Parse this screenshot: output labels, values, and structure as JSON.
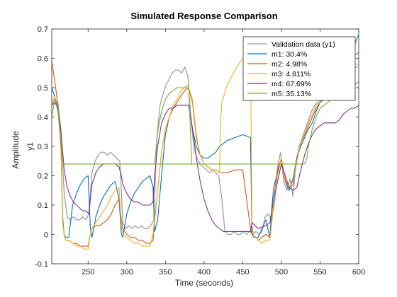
{
  "chart_data": {
    "type": "line",
    "title": "Simulated Response Comparison",
    "xlabel": "Time (seconds)",
    "ylabel": "Amplitude",
    "output_label": "y1",
    "xlim": [
      203,
      600
    ],
    "ylim": [
      -0.1,
      0.7
    ],
    "xticks": [
      250,
      300,
      350,
      400,
      450,
      500,
      550,
      600
    ],
    "yticks": [
      -0.1,
      0,
      0.1,
      0.2,
      0.3,
      0.4,
      0.5,
      0.6,
      0.7
    ],
    "legend_position": "top-right",
    "series": [
      {
        "name": "Validation data (y1)",
        "color": "#a0a0a0",
        "x": [
          203,
          207,
          211,
          215,
          219,
          223,
          227,
          231,
          235,
          239,
          243,
          247,
          251,
          255,
          259,
          263,
          267,
          271,
          275,
          279,
          283,
          287,
          291,
          295,
          299,
          303,
          307,
          311,
          315,
          319,
          323,
          327,
          331,
          335,
          339,
          343,
          347,
          351,
          355,
          359,
          363,
          367,
          371,
          375,
          379,
          383,
          387,
          391,
          395,
          399,
          403,
          407,
          411,
          415,
          419,
          423,
          427,
          431,
          435,
          439,
          443,
          447,
          451,
          455,
          459,
          463,
          467,
          471,
          475,
          479,
          483,
          487,
          491,
          495,
          499,
          503,
          507,
          511,
          515,
          519,
          523,
          527,
          531,
          535,
          539,
          543,
          547,
          551,
          555,
          559,
          563,
          567,
          571,
          575,
          579,
          583,
          587,
          591,
          595,
          599
        ],
        "y": [
          0.44,
          0.46,
          0.45,
          0.35,
          0.14,
          0.06,
          0.05,
          0.06,
          0.05,
          0.05,
          0.06,
          0.05,
          0.07,
          0.21,
          0.25,
          0.27,
          0.28,
          0.28,
          0.27,
          0.28,
          0.27,
          0.26,
          0.25,
          0.04,
          0.02,
          0.03,
          0.02,
          0.03,
          0.02,
          0.03,
          0.02,
          0.02,
          0.03,
          0.05,
          0.33,
          0.44,
          0.48,
          0.51,
          0.53,
          0.55,
          0.56,
          0.56,
          0.55,
          0.57,
          0.54,
          0.4,
          0.29,
          0.26,
          0.24,
          0.23,
          0.22,
          0.21,
          0.22,
          0.21,
          0.2,
          0.12,
          0.01,
          0.0,
          0.0,
          0.01,
          0.0,
          0.0,
          0.01,
          0.0,
          0.01,
          0.0,
          0.01,
          0.0,
          0.01,
          0.06,
          0.07,
          0.05,
          0.1,
          0.23,
          0.28,
          0.18,
          0.15,
          0.19,
          0.13,
          0.25,
          0.3,
          0.33,
          0.36,
          0.39,
          0.42,
          0.44,
          0.45,
          0.46,
          0.48,
          0.49,
          0.5,
          0.51,
          0.52,
          0.53,
          0.54,
          0.55,
          0.56,
          0.56,
          0.57,
          0.57
        ]
      },
      {
        "name": "m1: 30.4%",
        "color": "#0072bd",
        "x": [
          203,
          207,
          211,
          215,
          217,
          219,
          221,
          225,
          230,
          235,
          240,
          245,
          250,
          253,
          255,
          260,
          265,
          270,
          275,
          280,
          285,
          290,
          293,
          295,
          300,
          305,
          310,
          315,
          320,
          325,
          330,
          334,
          336,
          340,
          345,
          350,
          355,
          360,
          365,
          370,
          375,
          380,
          385,
          390,
          395,
          400,
          405,
          410,
          415,
          420,
          425,
          430,
          440,
          450,
          460,
          462,
          464,
          470,
          475,
          480,
          485,
          488,
          490,
          495,
          500,
          505,
          510,
          515,
          520,
          525,
          530,
          535,
          540,
          545,
          550,
          555,
          560,
          565,
          570,
          575,
          580,
          585,
          590,
          595,
          600
        ],
        "y": [
          0.5,
          0.47,
          0.42,
          0.3,
          0.06,
          0.0,
          -0.01,
          -0.01,
          0.1,
          0.14,
          0.17,
          0.19,
          0.2,
          0.02,
          -0.01,
          0.06,
          0.1,
          0.13,
          0.15,
          0.17,
          0.18,
          0.12,
          0.0,
          -0.01,
          0.07,
          0.11,
          0.14,
          0.16,
          0.18,
          0.19,
          0.2,
          0.16,
          0.01,
          0.05,
          0.2,
          0.34,
          0.4,
          0.43,
          0.44,
          0.44,
          0.44,
          0.44,
          0.36,
          0.3,
          0.27,
          0.26,
          0.26,
          0.27,
          0.28,
          0.3,
          0.31,
          0.32,
          0.33,
          0.34,
          0.33,
          0.0,
          -0.01,
          -0.01,
          0.02,
          0.05,
          -0.01,
          0.1,
          0.16,
          0.21,
          0.26,
          0.18,
          0.15,
          0.19,
          0.26,
          0.3,
          0.33,
          0.36,
          0.38,
          0.42,
          0.45,
          0.46,
          0.47,
          0.48,
          0.49,
          0.51,
          0.53,
          0.58,
          0.61,
          0.65,
          0.68
        ]
      },
      {
        "name": "m2: 4.98%",
        "color": "#d95319",
        "x": [
          203,
          207,
          211,
          215,
          217,
          219,
          221,
          225,
          230,
          235,
          240,
          245,
          250,
          253,
          255,
          260,
          265,
          270,
          275,
          280,
          285,
          290,
          293,
          295,
          300,
          305,
          310,
          315,
          320,
          325,
          330,
          334,
          336,
          340,
          345,
          350,
          355,
          360,
          365,
          370,
          375,
          380,
          385,
          390,
          395,
          400,
          405,
          410,
          415,
          420,
          425,
          430,
          440,
          450,
          460,
          462,
          464,
          470,
          475,
          480,
          485,
          488,
          490,
          495,
          500,
          505,
          510,
          515,
          520,
          525,
          530,
          535,
          540,
          545,
          550,
          555,
          560,
          565,
          570,
          575,
          580,
          585,
          590,
          595,
          600
        ],
        "y": [
          0.59,
          0.52,
          0.44,
          0.3,
          0.05,
          0.0,
          -0.02,
          -0.02,
          -0.03,
          -0.03,
          -0.04,
          -0.04,
          -0.04,
          0.0,
          0.02,
          0.03,
          0.03,
          0.04,
          0.05,
          0.07,
          0.1,
          0.12,
          0.05,
          0.02,
          0.0,
          -0.01,
          -0.01,
          -0.02,
          -0.02,
          -0.03,
          -0.03,
          -0.02,
          0.05,
          0.15,
          0.28,
          0.36,
          0.4,
          0.43,
          0.45,
          0.47,
          0.49,
          0.5,
          0.45,
          0.33,
          0.27,
          0.24,
          0.23,
          0.22,
          0.22,
          0.21,
          0.21,
          0.21,
          0.22,
          0.22,
          0.02,
          0.0,
          0.0,
          -0.02,
          -0.01,
          0.0,
          -0.01,
          0.05,
          0.12,
          0.22,
          0.26,
          0.18,
          0.16,
          0.17,
          0.25,
          0.31,
          0.34,
          0.37,
          0.4,
          0.43,
          0.45,
          0.47,
          0.48,
          0.5,
          0.52,
          0.54,
          0.56,
          0.58,
          0.6,
          0.61,
          0.62
        ]
      },
      {
        "name": "m3: 4.811%",
        "color": "#edb120",
        "x": [
          203,
          207,
          211,
          215,
          217,
          219,
          221,
          225,
          230,
          235,
          240,
          245,
          250,
          253,
          255,
          260,
          265,
          270,
          275,
          280,
          285,
          290,
          293,
          295,
          300,
          305,
          310,
          315,
          320,
          325,
          330,
          334,
          336,
          340,
          345,
          350,
          355,
          360,
          365,
          370,
          375,
          380,
          385,
          390,
          395,
          400,
          405,
          410,
          415,
          420,
          421,
          423,
          430,
          440,
          450,
          460,
          462,
          464,
          470,
          475,
          480,
          485,
          488,
          490,
          495,
          500,
          505,
          510,
          515,
          520,
          525,
          530,
          535,
          540,
          545,
          550,
          555,
          560,
          565,
          570,
          575,
          580,
          585,
          590,
          595,
          600
        ],
        "y": [
          0.45,
          0.47,
          0.43,
          0.28,
          0.04,
          0.0,
          -0.02,
          -0.02,
          -0.03,
          -0.04,
          -0.04,
          -0.05,
          -0.05,
          0.0,
          0.02,
          0.04,
          0.06,
          0.08,
          0.1,
          0.13,
          0.15,
          0.16,
          0.03,
          0.0,
          -0.01,
          -0.02,
          -0.03,
          -0.03,
          -0.04,
          -0.04,
          -0.04,
          0.0,
          0.06,
          0.15,
          0.28,
          0.36,
          0.4,
          0.44,
          0.46,
          0.49,
          0.5,
          0.5,
          0.46,
          0.34,
          0.27,
          0.24,
          0.23,
          0.22,
          0.22,
          0.21,
          0.37,
          0.45,
          0.51,
          0.56,
          0.6,
          0.61,
          0.03,
          0.0,
          -0.02,
          -0.03,
          -0.02,
          -0.02,
          0.05,
          0.12,
          0.2,
          0.26,
          0.19,
          0.16,
          0.18,
          0.25,
          0.31,
          0.35,
          0.38,
          0.41,
          0.44,
          0.46,
          0.47,
          0.49,
          0.51,
          0.53,
          0.55,
          0.56,
          0.57,
          0.58,
          0.58,
          0.58
        ]
      },
      {
        "name": "m4: 67.69%",
        "color": "#7e2f8e",
        "x": [
          203,
          207,
          211,
          215,
          219,
          223,
          227,
          231,
          235,
          239,
          243,
          247,
          251,
          253,
          255,
          260,
          265,
          270,
          275,
          280,
          285,
          290,
          293,
          295,
          300,
          305,
          310,
          315,
          320,
          325,
          330,
          334,
          336,
          340,
          345,
          350,
          355,
          360,
          365,
          370,
          375,
          380,
          385,
          390,
          395,
          400,
          405,
          410,
          415,
          420,
          425,
          430,
          440,
          450,
          460,
          462,
          470,
          480,
          485,
          490,
          495,
          500,
          505,
          510,
          515,
          520,
          525,
          530,
          535,
          540,
          545,
          550,
          555,
          560,
          565,
          570,
          575,
          580,
          585,
          590,
          595,
          600
        ],
        "y": [
          0.44,
          0.45,
          0.43,
          0.35,
          0.22,
          0.16,
          0.13,
          0.11,
          0.1,
          0.09,
          0.08,
          0.08,
          0.07,
          0.12,
          0.17,
          0.21,
          0.23,
          0.24,
          0.24,
          0.24,
          0.24,
          0.23,
          0.2,
          0.17,
          0.14,
          0.12,
          0.11,
          0.11,
          0.1,
          0.1,
          0.1,
          0.11,
          0.2,
          0.3,
          0.38,
          0.41,
          0.43,
          0.43,
          0.44,
          0.44,
          0.44,
          0.44,
          0.36,
          0.26,
          0.18,
          0.12,
          0.08,
          0.05,
          0.03,
          0.02,
          0.01,
          0.01,
          0.01,
          0.01,
          0.01,
          0.04,
          0.02,
          0.03,
          0.04,
          0.12,
          0.18,
          0.24,
          0.2,
          0.16,
          0.15,
          0.16,
          0.22,
          0.27,
          0.31,
          0.34,
          0.36,
          0.37,
          0.38,
          0.38,
          0.38,
          0.38,
          0.39,
          0.41,
          0.42,
          0.43,
          0.43,
          0.44
        ]
      },
      {
        "name": "m5: 35.13%",
        "color": "#77ac30",
        "x": [
          203,
          207,
          211,
          215,
          217,
          219,
          530,
          533,
          535,
          540,
          545,
          550,
          555,
          560,
          565,
          570,
          575,
          580,
          585,
          590,
          595,
          600
        ],
        "y": [
          0.4,
          0.46,
          0.44,
          0.3,
          0.25,
          0.24,
          0.24,
          0.26,
          0.3,
          0.36,
          0.4,
          0.43,
          0.44,
          0.45,
          0.46,
          0.47,
          0.48,
          0.49,
          0.5,
          0.51,
          0.51,
          0.52
        ],
        "extra_x": [
          336,
          340,
          345,
          350,
          355,
          360,
          365,
          370,
          375,
          380,
          384
        ],
        "extra_y": [
          0.24,
          0.35,
          0.42,
          0.46,
          0.48,
          0.49,
          0.5,
          0.5,
          0.5,
          0.51,
          0.24
        ]
      }
    ]
  }
}
